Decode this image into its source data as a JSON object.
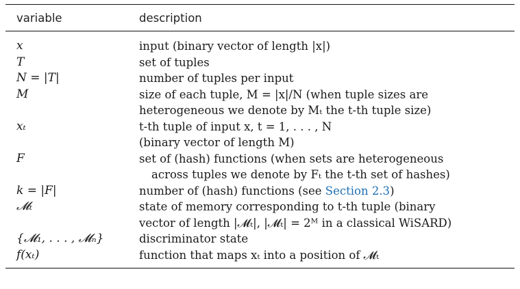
{
  "table": {
    "header": {
      "variable": "variable",
      "description": "description"
    },
    "rows": [
      {
        "variable": "x",
        "lines": [
          "input (binary vector of length |x|)"
        ]
      },
      {
        "variable": "T",
        "lines": [
          "set of tuples"
        ]
      },
      {
        "variable": "N = |T|",
        "lines": [
          "number of tuples per input"
        ]
      },
      {
        "variable": "M",
        "lines": [
          "size of each tuple, M = |x|/N (when tuple sizes are",
          "heterogeneous we denote by Mₜ the t-th tuple size)"
        ]
      },
      {
        "variable": "xₜ",
        "lines": [
          "t-th tuple of input x, t = 1, . . . , N",
          "(binary vector of length M)"
        ]
      },
      {
        "variable": "F",
        "lines": [
          "set of (hash) functions (when sets are heterogeneous",
          "across tuples we denote by Fₜ the t-th set of hashes)"
        ]
      },
      {
        "variable": "k = |F|",
        "lines": [
          "number of (hash) functions (see Section 2.3)"
        ],
        "link_text": "Section 2.3"
      },
      {
        "variable": "𝓜ₜ",
        "lines": [
          "state of memory corresponding to t-th tuple (binary",
          "vector of length |𝓜ₜ|, |𝓜ₜ| = 2ᴹ in a classical WiSARD)"
        ]
      },
      {
        "variable": "{𝓜₁, . . . , 𝓜ₙ}",
        "lines": [
          "discriminator state"
        ]
      },
      {
        "variable": "f(xₜ)",
        "lines": [
          "function that maps xₜ into a position of 𝓜ₜ"
        ]
      }
    ]
  }
}
